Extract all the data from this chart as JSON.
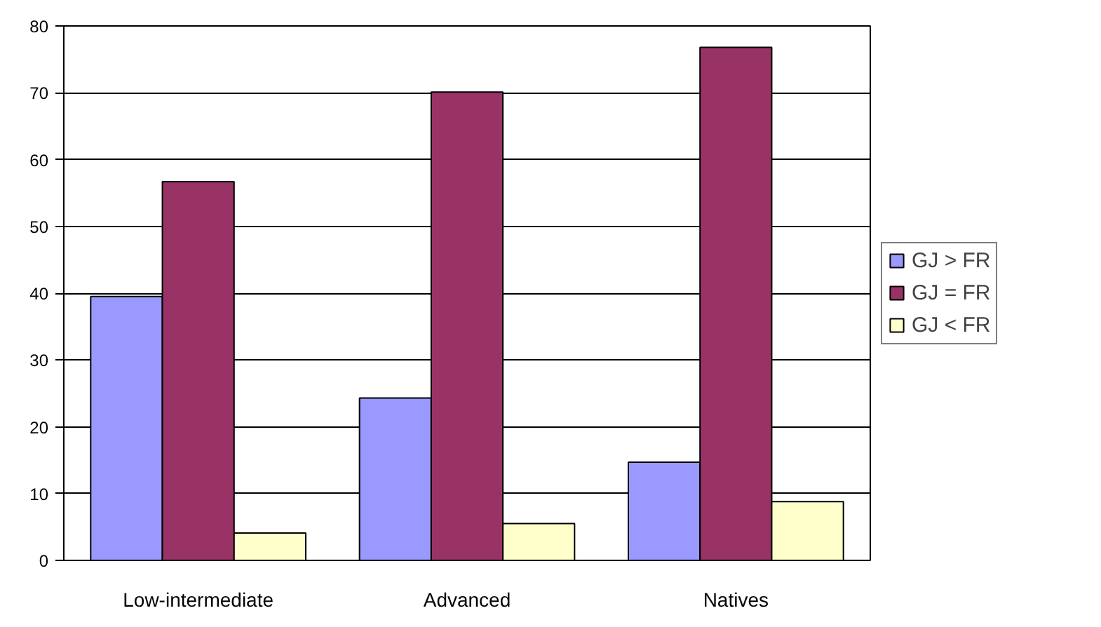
{
  "chart_data": {
    "type": "bar",
    "categories": [
      "Low-intermediate",
      "Advanced",
      "Natives"
    ],
    "series": [
      {
        "name": "GJ > FR",
        "color": "#9999ff",
        "values": [
          39.5,
          24.3,
          14.7
        ]
      },
      {
        "name": "GJ = FR",
        "color": "#993366",
        "values": [
          56.7,
          70.1,
          76.8
        ]
      },
      {
        "name": "GJ < FR",
        "color": "#ffffcc",
        "values": [
          4.1,
          5.5,
          8.8
        ]
      }
    ],
    "ylim": [
      0,
      80
    ],
    "yticks": [
      0,
      10,
      20,
      30,
      40,
      50,
      60,
      70,
      80
    ],
    "grid": "y",
    "legend": "right"
  }
}
